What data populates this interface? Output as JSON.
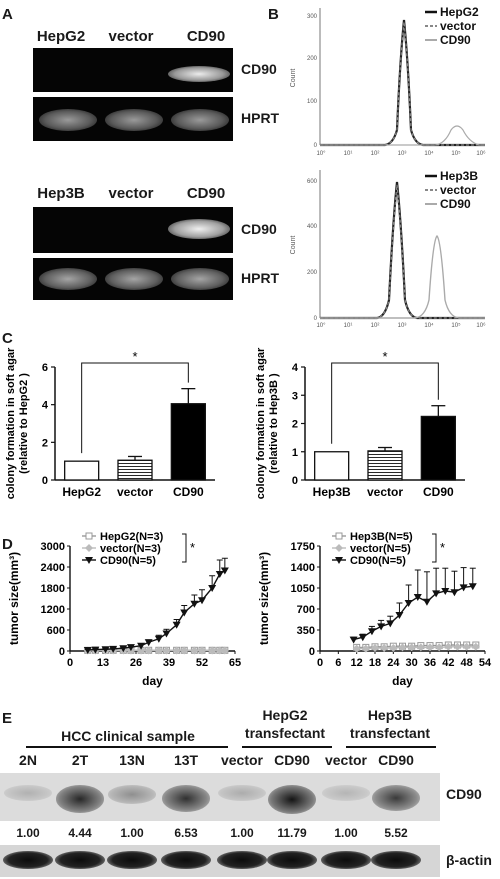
{
  "panels": {
    "A": "A",
    "B": "B",
    "C": "C",
    "D": "D",
    "E": "E"
  },
  "panelA": {
    "top": {
      "lanes": [
        "HepG2",
        "vector",
        "CD90"
      ],
      "bands": [
        "CD90",
        "HPRT"
      ]
    },
    "bottom": {
      "lanes": [
        "Hep3B",
        "vector",
        "CD90"
      ],
      "bands": [
        "CD90",
        "HPRT"
      ]
    }
  },
  "panelB": {
    "top": {
      "ylabel": "Count",
      "yticks": [
        "0",
        "100",
        "200",
        "300"
      ],
      "xticks": [
        "10°",
        "10¹",
        "10²",
        "10³",
        "10⁴",
        "10⁵",
        "10⁶"
      ],
      "legend": [
        "HepG2",
        "vector",
        "CD90"
      ]
    },
    "bottom": {
      "ylabel": "Count",
      "yticks": [
        "0",
        "200",
        "400",
        "600"
      ],
      "xticks": [
        "10°",
        "10¹",
        "10²",
        "10³",
        "10⁴",
        "10⁵",
        "10⁶"
      ],
      "legend": [
        "Hep3B",
        "vector",
        "CD90"
      ]
    }
  },
  "chart_data": [
    {
      "type": "bar",
      "categories": [
        "HepG2",
        "vector",
        "CD90"
      ],
      "values": [
        1.0,
        1.05,
        4.05
      ],
      "errors": [
        0,
        0.2,
        0.8
      ],
      "ylabel": "colony formation in soft agar\n(relative to HepG2 )",
      "ylim": [
        0,
        6
      ],
      "yticks": [
        "0",
        "2",
        "4",
        "6"
      ],
      "significance": "*"
    },
    {
      "type": "bar",
      "categories": [
        "Hep3B",
        "vector",
        "CD90"
      ],
      "values": [
        1.0,
        1.03,
        2.25
      ],
      "errors": [
        0,
        0.12,
        0.38
      ],
      "ylabel": "colony formation in soft agar\n(relative to Hep3B )",
      "ylim": [
        0,
        4
      ],
      "yticks": [
        "0",
        "1",
        "2",
        "3",
        "4"
      ],
      "significance": "*"
    },
    {
      "type": "line",
      "xlabel": "day",
      "ylabel": "tumor size(mm³)",
      "xticks": [
        "0",
        "13",
        "26",
        "39",
        "52",
        "65"
      ],
      "yticks": [
        "0",
        "600",
        "1200",
        "1800",
        "2400",
        "3000"
      ],
      "xlim": [
        0,
        65
      ],
      "ylim": [
        0,
        3000
      ],
      "significance": "*",
      "series": [
        {
          "name": "HepG2(N=3)",
          "x": [
            7,
            10,
            14,
            17,
            21,
            24,
            28,
            31,
            35,
            38,
            42,
            45,
            49,
            52,
            56,
            59,
            61
          ],
          "y": [
            20,
            20,
            20,
            20,
            20,
            20,
            20,
            20,
            20,
            20,
            20,
            20,
            20,
            20,
            20,
            20,
            20
          ]
        },
        {
          "name": "vector(N=3)",
          "x": [
            7,
            10,
            14,
            17,
            21,
            24,
            28,
            31,
            35,
            38,
            42,
            45,
            49,
            52,
            56,
            59,
            61
          ],
          "y": [
            15,
            15,
            15,
            15,
            15,
            15,
            15,
            15,
            15,
            15,
            15,
            15,
            15,
            15,
            15,
            15,
            15
          ]
        },
        {
          "name": "CD90(N=5)",
          "x": [
            7,
            10,
            14,
            17,
            21,
            24,
            28,
            31,
            35,
            38,
            42,
            45,
            49,
            52,
            56,
            59,
            61
          ],
          "y": [
            30,
            40,
            50,
            60,
            80,
            110,
            150,
            250,
            350,
            500,
            750,
            1100,
            1350,
            1450,
            1800,
            2200,
            2300
          ],
          "errors": [
            10,
            10,
            20,
            20,
            30,
            40,
            50,
            70,
            100,
            120,
            150,
            200,
            250,
            300,
            350,
            400,
            350
          ]
        }
      ]
    },
    {
      "type": "line",
      "xlabel": "day",
      "ylabel": "tumor size(mm³)",
      "xticks": [
        "0",
        "6",
        "12",
        "18",
        "24",
        "30",
        "36",
        "42",
        "48",
        "54"
      ],
      "yticks": [
        "0",
        "350",
        "700",
        "1050",
        "1400",
        "1750"
      ],
      "xlim": [
        0,
        54
      ],
      "ylim": [
        0,
        1750
      ],
      "significance": "*",
      "series": [
        {
          "name": "Hep3B(N=5)",
          "x": [
            12,
            15,
            18,
            21,
            24,
            27,
            30,
            33,
            36,
            39,
            42,
            45,
            48,
            51
          ],
          "y": [
            60,
            60,
            70,
            70,
            80,
            80,
            80,
            90,
            90,
            90,
            100,
            100,
            100,
            100
          ]
        },
        {
          "name": "vector(N=5)",
          "x": [
            12,
            15,
            18,
            21,
            24,
            27,
            30,
            33,
            36,
            39,
            42,
            45,
            48,
            51
          ],
          "y": [
            40,
            40,
            50,
            50,
            50,
            60,
            60,
            60,
            60,
            60,
            70,
            70,
            70,
            70
          ]
        },
        {
          "name": "CD90(N=5)",
          "x": [
            11,
            14,
            17,
            20,
            23,
            26,
            29,
            32,
            35,
            38,
            41,
            44,
            47,
            50
          ],
          "y": [
            190,
            230,
            330,
            410,
            460,
            600,
            800,
            900,
            820,
            960,
            1000,
            980,
            1060,
            1080
          ],
          "errors": [
            40,
            50,
            80,
            100,
            120,
            200,
            300,
            450,
            500,
            420,
            380,
            350,
            330,
            300
          ]
        }
      ]
    }
  ],
  "panelE": {
    "group1": "HCC clinical sample",
    "group2": "HepG2\ntransfectant",
    "group3": "Hep3B\ntransfectant",
    "lanes": [
      "2N",
      "2T",
      "13N",
      "13T",
      "vector",
      "CD90",
      "vector",
      "CD90"
    ],
    "band_top": "CD90",
    "band_bottom": "β-actin",
    "quant": [
      "1.00",
      "4.44",
      "1.00",
      "6.53",
      "1.00",
      "11.79",
      "1.00",
      "5.52"
    ],
    "intensity": [
      0.12,
      0.85,
      0.3,
      0.8,
      0.15,
      0.95,
      0.1,
      0.75
    ]
  }
}
